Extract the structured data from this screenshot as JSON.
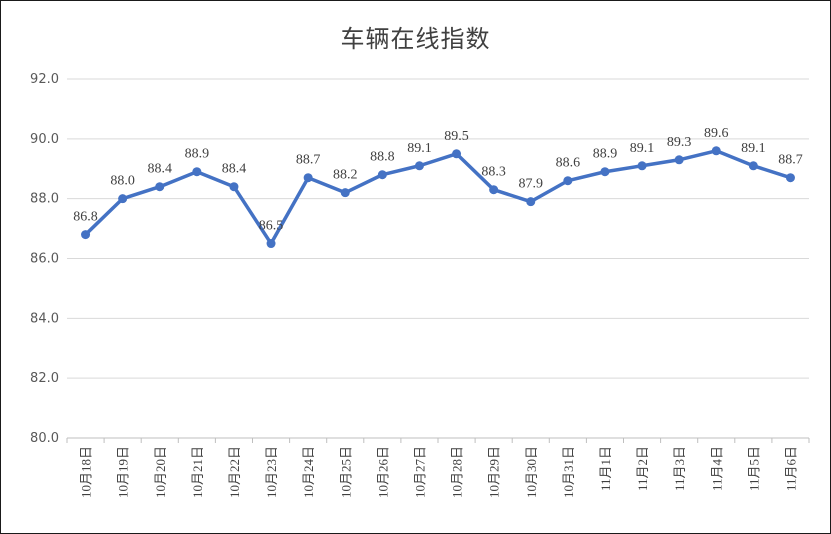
{
  "chart_data": {
    "type": "line",
    "title": "车辆在线指数",
    "xlabel": "",
    "ylabel": "",
    "categories": [
      "10月18日",
      "10月19日",
      "10月20日",
      "10月21日",
      "10月22日",
      "10月23日",
      "10月24日",
      "10月25日",
      "10月26日",
      "10月27日",
      "10月28日",
      "10月29日",
      "10月30日",
      "10月31日",
      "11月1日",
      "11月2日",
      "11月3日",
      "11月4日",
      "11月5日",
      "11月6日"
    ],
    "series": [
      {
        "values": [
          86.8,
          88.0,
          88.4,
          88.9,
          88.4,
          86.5,
          88.7,
          88.2,
          88.8,
          89.1,
          89.5,
          88.3,
          87.9,
          88.6,
          88.9,
          89.1,
          89.3,
          89.6,
          89.1,
          88.7
        ],
        "labels": [
          "86.8",
          "88.0",
          "88.4",
          "88.9",
          "88.4",
          "86.5",
          "88.7",
          "88.2",
          "88.8",
          "89.1",
          "89.5",
          "88.3",
          "87.9",
          "88.6",
          "88.9",
          "89.1",
          "89.3",
          "89.6",
          "89.1",
          "88.7"
        ]
      }
    ],
    "ylim": [
      80.0,
      92.0
    ],
    "yticks": [
      "80.0",
      "82.0",
      "84.0",
      "86.0",
      "88.0",
      "90.0",
      "92.0"
    ],
    "grid": true,
    "line_color": "#4472C4",
    "grid_color": "#d9d9d9"
  }
}
